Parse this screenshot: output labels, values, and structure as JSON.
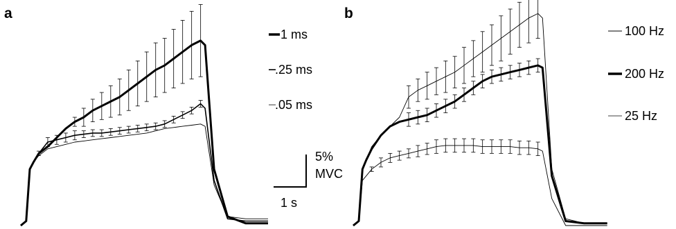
{
  "chart_data": [
    {
      "type": "line",
      "panel_label": "a",
      "x": [
        0.0,
        0.12,
        0.2,
        0.28,
        0.4,
        0.6,
        0.8,
        1.0,
        1.2,
        1.4,
        1.6,
        1.8,
        2.0,
        2.2,
        2.4,
        2.6,
        2.8,
        3.0,
        3.2,
        3.4,
        3.6,
        3.8,
        4.0,
        4.1,
        4.3,
        4.6,
        5.0,
        5.5
      ],
      "series": [
        {
          "name": "1 ms",
          "weight": "thick",
          "values": [
            0,
            2,
            25,
            28,
            32,
            35,
            39,
            43,
            46,
            48,
            51,
            53,
            55,
            57,
            60,
            63,
            66,
            69,
            71,
            74,
            77,
            80,
            82,
            80,
            25,
            4,
            1,
            1
          ]
        },
        {
          "name": ".25 ms",
          "weight": "medium",
          "values": [
            0,
            2,
            25,
            28,
            32,
            37,
            38,
            39,
            40,
            40.5,
            41,
            41,
            41.5,
            42,
            42.5,
            43,
            43.5,
            44,
            45,
            47,
            49,
            51,
            54,
            52,
            20,
            3,
            2,
            2
          ]
        },
        {
          "name": ".05 ms",
          "weight": "thin",
          "values": [
            0,
            2,
            25,
            28,
            31,
            34,
            35,
            36,
            37,
            37.5,
            38,
            38.5,
            39,
            39.5,
            40,
            40.5,
            41,
            42,
            43,
            43.5,
            44,
            44.5,
            45,
            44,
            18,
            4,
            3,
            3
          ]
        }
      ],
      "error_bars": [
        {
          "series": "1 ms",
          "x": [
            1.2,
            1.4,
            1.6,
            1.8,
            2.0,
            2.2,
            2.4,
            2.6,
            2.8,
            3.0,
            3.2,
            3.4,
            3.6,
            3.8,
            4.0
          ],
          "err": [
            2,
            4,
            5,
            6,
            7,
            8,
            9,
            10,
            11,
            12,
            12,
            13,
            14,
            15,
            16
          ]
        },
        {
          "series": ".25 ms",
          "x": [
            0.4,
            0.6,
            0.8,
            1.0,
            1.2,
            1.4,
            1.6,
            1.8,
            2.0,
            2.2,
            2.4,
            2.6,
            2.8,
            3.0,
            3.2,
            3.4,
            3.6,
            3.8,
            4.0
          ],
          "err": [
            1,
            2,
            2,
            2,
            2,
            1.5,
            1.5,
            1.5,
            1.5,
            1.5,
            1.5,
            1.5,
            1.5,
            1.5,
            1.5,
            1.5,
            1.5,
            1.5,
            1.5
          ]
        }
      ],
      "ylim": [
        0,
        100
      ],
      "xlim": [
        0,
        5.7
      ],
      "grid": false,
      "legend": "right"
    },
    {
      "type": "line",
      "panel_label": "b",
      "x": [
        0.0,
        0.12,
        0.2,
        0.28,
        0.4,
        0.6,
        0.8,
        1.0,
        1.2,
        1.4,
        1.6,
        1.8,
        2.0,
        2.2,
        2.4,
        2.6,
        2.8,
        3.0,
        3.2,
        3.4,
        3.6,
        3.8,
        4.0,
        4.1,
        4.3,
        4.6,
        5.0,
        5.5
      ],
      "series": [
        {
          "name": "100 Hz",
          "weight": "thin",
          "values": [
            0,
            2,
            25,
            29,
            35,
            40,
            44,
            48,
            57,
            60,
            62,
            64,
            66,
            68,
            71,
            74,
            77,
            80,
            83,
            86,
            89,
            92,
            94,
            92,
            25,
            3,
            1,
            1
          ]
        },
        {
          "name": "200 Hz",
          "weight": "thick",
          "values": [
            0,
            2,
            25,
            29,
            34,
            40,
            44,
            46,
            47,
            48,
            49,
            51,
            53,
            55,
            58,
            61,
            64,
            66,
            67,
            68,
            69,
            70,
            71,
            70,
            22,
            2,
            1,
            1
          ]
        },
        {
          "name": "25 Hz",
          "weight": "thin",
          "values": [
            0,
            2,
            20,
            22,
            25,
            28,
            30,
            31,
            32,
            33,
            34,
            35,
            35.5,
            35.5,
            35.5,
            35.5,
            35,
            35,
            35,
            35,
            34.5,
            34.5,
            34,
            33,
            12,
            0,
            0,
            0
          ]
        }
      ],
      "error_bars": [
        {
          "series": "100 Hz",
          "x": [
            1.2,
            1.4,
            1.6,
            1.8,
            2.0,
            2.2,
            2.4,
            2.6,
            2.8,
            3.0,
            3.2,
            3.4,
            3.6,
            3.8,
            4.0
          ],
          "err": [
            5,
            5,
            6,
            6,
            7,
            7,
            8,
            8,
            9,
            9,
            10,
            10,
            10,
            11,
            11
          ]
        },
        {
          "series": "200 Hz",
          "x": [
            1.2,
            1.4,
            1.6,
            1.8,
            2.0,
            2.2,
            2.4,
            2.6,
            2.8,
            3.0,
            3.2,
            3.4,
            3.6,
            3.8,
            4.0
          ],
          "err": [
            3,
            3,
            3,
            3,
            3,
            3,
            3,
            3,
            3,
            3,
            3,
            3,
            3,
            3,
            3
          ]
        },
        {
          "series": "25 Hz",
          "x": [
            0.4,
            0.6,
            0.8,
            1.0,
            1.2,
            1.4,
            1.6,
            1.8,
            2.0,
            2.2,
            2.4,
            2.6,
            2.8,
            3.0,
            3.2,
            3.4,
            3.6,
            3.8,
            4.0
          ],
          "err": [
            1,
            2,
            2,
            2,
            2,
            2.5,
            2.5,
            3,
            3,
            3,
            3,
            3,
            3,
            3,
            3,
            3,
            3,
            3,
            3
          ]
        }
      ],
      "ylim": [
        0,
        100
      ],
      "xlim": [
        0,
        5.7
      ],
      "grid": false,
      "legend": "right"
    }
  ],
  "scale_bar": {
    "y_value": 5,
    "y_label_line1": "5%",
    "y_label_line2": "MVC",
    "x_value": 1,
    "x_label": "1 s"
  },
  "labels": {
    "panel_a": "a",
    "panel_b": "b",
    "legend_a": [
      "1 ms",
      ".25 ms",
      ".05 ms"
    ],
    "legend_b": [
      "100 Hz",
      "200 Hz",
      "25 Hz"
    ]
  }
}
